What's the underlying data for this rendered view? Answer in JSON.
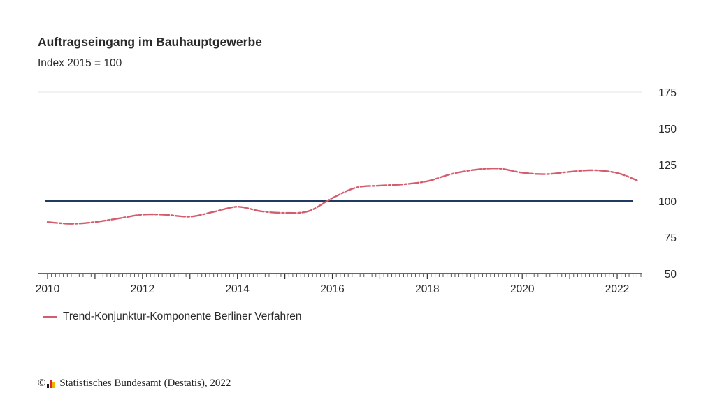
{
  "header": {
    "title": "Auftragseingang im Bauhauptgewerbe",
    "subtitle": "Index 2015 = 100"
  },
  "legend": {
    "label": "Trend-Konjunktur-Komponente Berliner Verfahren",
    "color": "#d45d6d"
  },
  "source": {
    "copyright": "©",
    "text": "Statistisches Bundesamt (Destatis), 2022"
  },
  "colors": {
    "series": "#d45d6d",
    "reference": "#1f3b63",
    "axis": "#333333",
    "grid": "#e6e6e6"
  },
  "chart_data": {
    "type": "line",
    "title": "Auftragseingang im Bauhauptgewerbe",
    "subtitle": "Index 2015 = 100",
    "xlabel": "",
    "ylabel": "",
    "xlim": [
      "2010-01",
      "2022-07"
    ],
    "ylim": [
      50,
      175
    ],
    "yticks": [
      50,
      75,
      100,
      125,
      150,
      175
    ],
    "xticks": [
      "2010",
      "2012",
      "2014",
      "2016",
      "2018",
      "2020",
      "2022"
    ],
    "y_axis_position": "right",
    "grid": false,
    "legend_position": "bottom-left",
    "reference_line": {
      "value": 100
    },
    "series": [
      {
        "name": "Trend-Konjunktur-Komponente Berliner Verfahren",
        "points": [
          [
            "2010-01",
            85.5
          ],
          [
            "2010-07",
            84.3
          ],
          [
            "2011-01",
            85.5
          ],
          [
            "2011-07",
            88.0
          ],
          [
            "2012-01",
            90.6
          ],
          [
            "2012-07",
            90.5
          ],
          [
            "2013-01",
            89.2
          ],
          [
            "2013-07",
            92.5
          ],
          [
            "2014-01",
            96.0
          ],
          [
            "2014-07",
            92.9
          ],
          [
            "2015-01",
            91.8
          ],
          [
            "2015-07",
            93.0
          ],
          [
            "2016-01",
            102.0
          ],
          [
            "2016-07",
            109.2
          ],
          [
            "2017-01",
            110.6
          ],
          [
            "2017-07",
            111.5
          ],
          [
            "2018-01",
            113.6
          ],
          [
            "2018-07",
            118.5
          ],
          [
            "2019-01",
            121.5
          ],
          [
            "2019-07",
            122.4
          ],
          [
            "2020-01",
            119.5
          ],
          [
            "2020-07",
            118.5
          ],
          [
            "2021-01",
            120.1
          ],
          [
            "2021-07",
            121.2
          ],
          [
            "2022-01",
            119.3
          ],
          [
            "2022-06",
            114.2
          ]
        ]
      }
    ]
  }
}
